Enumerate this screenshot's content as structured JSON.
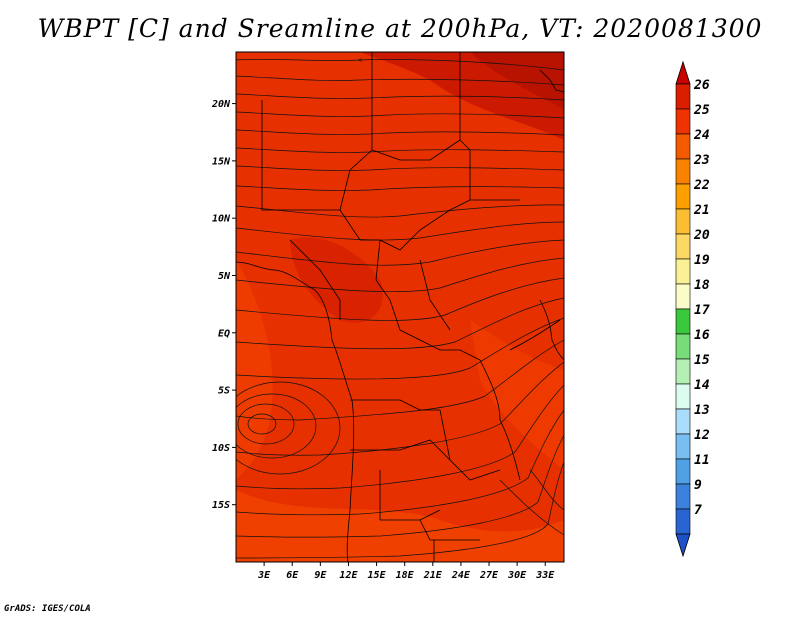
{
  "title": "WBPT [C] and Sreamline at 200hPa, VT: 2020081300",
  "credit": "GrADS: IGES/COLA",
  "colors": {
    "land_border": "#000000",
    "streamline": "#111111",
    "field_cool_edge": "#f03a00",
    "field_main": "#e63000",
    "field_warm": "#cc1a00"
  },
  "map": {
    "lon_range": [
      0,
      35
    ],
    "lat_range": [
      -20,
      24.5
    ],
    "lon_labels": [
      "3E",
      "6E",
      "9E",
      "12E",
      "15E",
      "18E",
      "21E",
      "24E",
      "27E",
      "30E",
      "33E"
    ],
    "lat_labels": [
      "20N",
      "15N",
      "10N",
      "5N",
      "EQ",
      "5S",
      "10S",
      "15S"
    ],
    "field_range_c": [
      23,
      26
    ]
  },
  "colorbar": {
    "levels": [
      "26",
      "25",
      "24",
      "23",
      "22",
      "21",
      "20",
      "19",
      "18",
      "17",
      "16",
      "15",
      "14",
      "13",
      "12",
      "11",
      "9",
      "7"
    ],
    "colors": [
      "#c80000",
      "#dc1e00",
      "#ee3200",
      "#f45a00",
      "#f98200",
      "#fba000",
      "#fbbe32",
      "#fbd864",
      "#fcf096",
      "#fcfcc8",
      "#3cc83c",
      "#78dc78",
      "#b4f0b4",
      "#dcfcf0",
      "#aadcfc",
      "#78bef0",
      "#50a0e6",
      "#3c82dc",
      "#2864d2",
      "#1e50c8"
    ]
  }
}
